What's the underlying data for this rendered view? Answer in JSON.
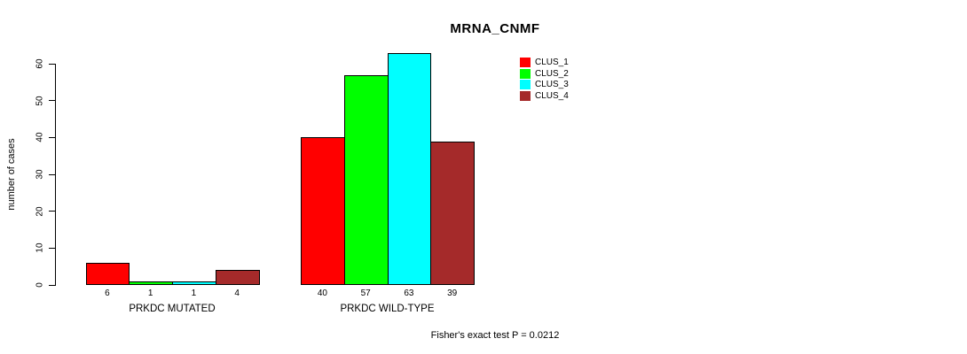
{
  "chart_data": {
    "type": "bar",
    "title": "MRNA_CNMF",
    "xlabel": "",
    "ylabel": "number of cases",
    "ylim": [
      0,
      60
    ],
    "yticks": [
      0,
      10,
      20,
      30,
      40,
      50,
      60
    ],
    "categories": [
      "PRKDC MUTATED",
      "PRKDC WILD-TYPE"
    ],
    "series": [
      {
        "name": "CLUS_1",
        "color": "#FF0000",
        "values": [
          6,
          40
        ]
      },
      {
        "name": "CLUS_2",
        "color": "#00FF00",
        "values": [
          1,
          57
        ]
      },
      {
        "name": "CLUS_3",
        "color": "#00FFFF",
        "values": [
          1,
          63
        ]
      },
      {
        "name": "CLUS_4",
        "color": "#A52A2A",
        "values": [
          4,
          39
        ]
      }
    ],
    "bar_value_labels": [
      [
        "6",
        "1",
        "1",
        "4"
      ],
      [
        "40",
        "57",
        "63",
        "39"
      ]
    ],
    "annotation": "Fisher's exact test P = 0.0212",
    "legend_position": "top-right",
    "grid": false,
    "background_color": "#FFFFFF",
    "axis_color": "#000000"
  }
}
